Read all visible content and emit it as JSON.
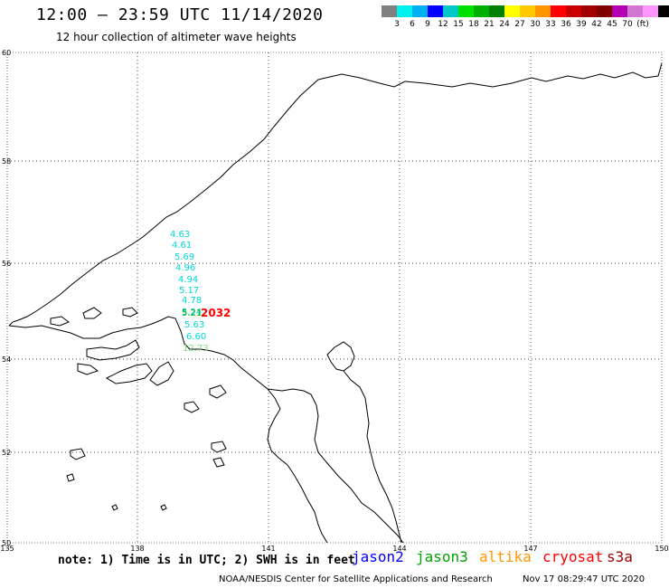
{
  "header": {
    "title": "12:00 – 23:59 UTC 11/14/2020",
    "subtitle": "12 hour collection of altimeter wave heights"
  },
  "colorbar": {
    "colors": [
      "#808080",
      "#00f0f0",
      "#00b0f0",
      "#0000ff",
      "#00c8c8",
      "#00e000",
      "#00b000",
      "#008000",
      "#ffff00",
      "#ffc800",
      "#ff9600",
      "#ff0000",
      "#c80000",
      "#a00000",
      "#800000",
      "#b400b4",
      "#d278d2",
      "#ff96ff",
      "#000000"
    ],
    "labels": [
      "3",
      "6",
      "9",
      "12",
      "15",
      "18",
      "21",
      "24",
      "27",
      "30",
      "33",
      "36",
      "39",
      "42",
      "45",
      "70",
      "(ft)"
    ]
  },
  "map": {
    "lat_ticks": [
      "60",
      "58",
      "56",
      "54",
      "52",
      "50"
    ],
    "lon_ticks": [
      "135",
      "138",
      "141",
      "144",
      "147",
      "150"
    ]
  },
  "observations": [
    {
      "value": "4.63",
      "color": "#00d8d8"
    },
    {
      "value": "4.61",
      "color": "#00d8d8"
    },
    {
      "value": "5.69",
      "color": "#00d8d8"
    },
    {
      "value": "4.96",
      "color": "#00d8d8"
    },
    {
      "value": "4.94",
      "color": "#00d8d8"
    },
    {
      "value": "5.17",
      "color": "#00d8d8"
    },
    {
      "value": "4.78",
      "color": "#00d8d8"
    },
    {
      "value": "5.24",
      "color": "#00d8d8"
    },
    {
      "value": "5.21",
      "color": "#00b000"
    },
    {
      "value": "5.63",
      "color": "#00d8d8"
    },
    {
      "value": "6.60",
      "color": "#00d8d8"
    },
    {
      "value": "12.73",
      "color": "#80e080"
    }
  ],
  "track_label": {
    "value": "2032",
    "color": "#ff0000"
  },
  "note": "note: 1) Time is in UTC; 2) SWH is in feet",
  "legend": [
    {
      "label": "jason2",
      "color": "#0000ff"
    },
    {
      "label": "jason3",
      "color": "#00a000"
    },
    {
      "label": "altika",
      "color": "#ff9600"
    },
    {
      "label": "cryosat",
      "color": "#ff0000"
    },
    {
      "label": "s3a",
      "color": "#a00000"
    }
  ],
  "footer": {
    "credit": "NOAA/NESDIS Center for Satellite Applications and Research",
    "date": "Nov 17 08:29:47 UTC 2020"
  }
}
